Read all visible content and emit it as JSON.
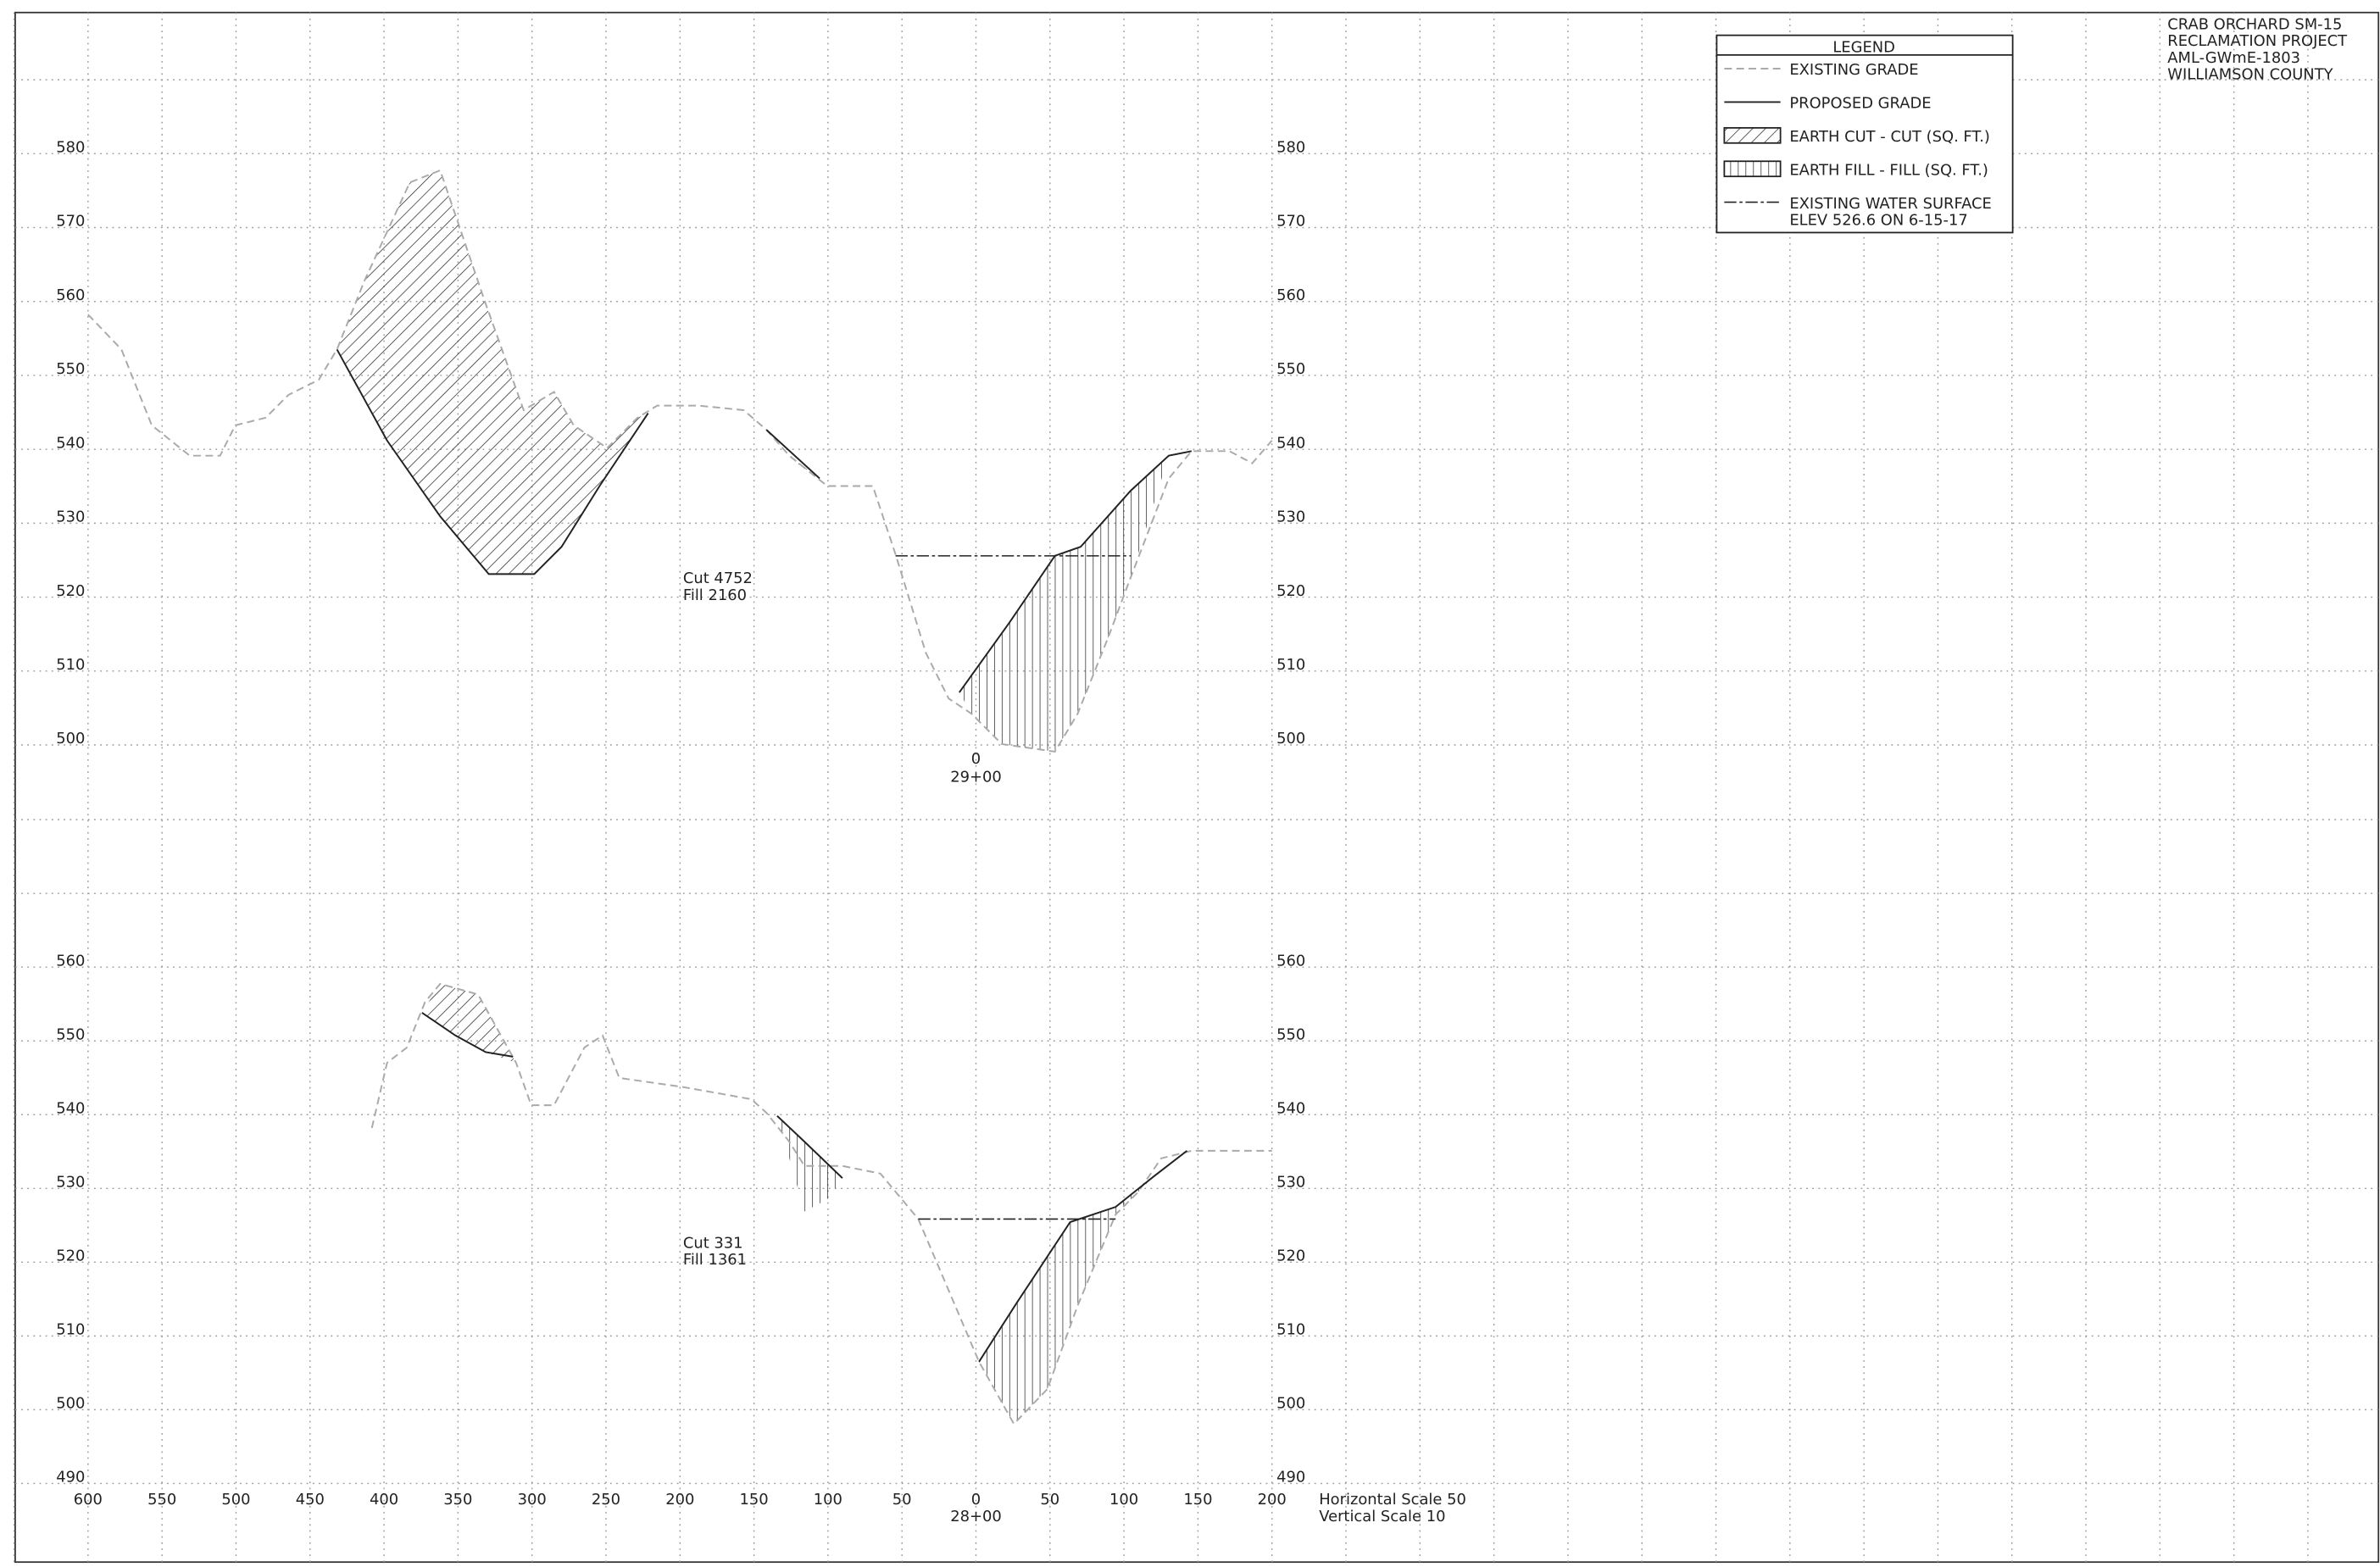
{
  "title_block": [
    "CRAB ORCHARD SM-15",
    "RECLAMATION PROJECT",
    "AML-GWmE-1803",
    "WILLIAMSON COUNTY"
  ],
  "legend": {
    "title": "LEGEND",
    "items": [
      "EXISTING GRADE",
      "PROPOSED GRADE",
      "EARTH CUT - CUT (SQ. FT.)",
      "EARTH FILL - FILL (SQ. FT.)",
      "EXISTING WATER SURFACE",
      "ELEV 526.6 ON 6-15-17"
    ]
  },
  "sections": [
    {
      "elevations": [
        "580",
        "570",
        "560",
        "550",
        "540",
        "530",
        "520",
        "510",
        "500"
      ],
      "cut": "Cut 4752",
      "fill": "Fill 2160",
      "offset": "0",
      "station": "29+00"
    },
    {
      "elevations": [
        "560",
        "550",
        "540",
        "530",
        "520",
        "510",
        "500",
        "490"
      ],
      "cut": "Cut 331",
      "fill": "Fill 1361",
      "station": "28+00"
    }
  ],
  "offsets": [
    "600",
    "550",
    "500",
    "450",
    "400",
    "350",
    "300",
    "250",
    "200",
    "150",
    "100",
    "50",
    "0",
    "50",
    "100",
    "150",
    "200"
  ],
  "scales": [
    "Horizontal Scale 50",
    "Vertical Scale 10"
  ]
}
